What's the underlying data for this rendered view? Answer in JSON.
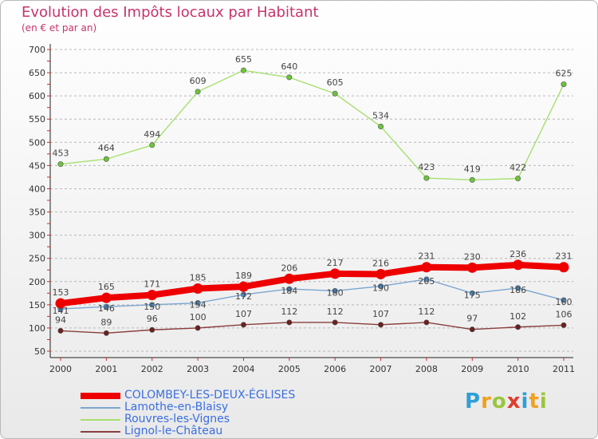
{
  "title": "Evolution des Impôts locaux par Habitant",
  "subtitle": "(en € et par an)",
  "logo": {
    "text": "Proxiti",
    "colors": [
      "#2e9fd8",
      "#f0a020",
      "#9bc53d",
      "#e23b2e",
      "#2e9fd8",
      "#f0a020",
      "#9bc53d"
    ]
  },
  "colors": {
    "title": "#c8336b",
    "grid": "#b8b8b8",
    "axis": "#222222"
  },
  "chart_data": {
    "type": "line",
    "title": "Evolution des Impôts locaux par Habitant",
    "subtitle": "(en € et par an)",
    "x": [
      "2000",
      "2001",
      "2002",
      "2003",
      "2004",
      "2005",
      "2006",
      "2007",
      "2008",
      "2009",
      "2010",
      "2011"
    ],
    "ylim": [
      50,
      700
    ],
    "yticks": [
      50,
      100,
      150,
      200,
      250,
      300,
      350,
      400,
      450,
      500,
      550,
      600,
      650,
      700
    ],
    "grid": "dashed horizontal",
    "legend_position": "bottom-left",
    "series": [
      {
        "name": "COLOMBEY-LES-DEUX-ÉGLISES",
        "color": "#ee0000",
        "marker": "#ee0000",
        "thick": true,
        "values": [
          153,
          165,
          171,
          185,
          189,
          206,
          217,
          216,
          231,
          230,
          236,
          231
        ]
      },
      {
        "name": "Lamothe-en-Blaisy",
        "color": "#7aa6d0",
        "marker": "#4a8fcf",
        "thick": false,
        "values": [
          141,
          146,
          150,
          154,
          172,
          184,
          180,
          190,
          205,
          175,
          186,
          160
        ]
      },
      {
        "name": "Rouvres-les-Vignes",
        "color": "#a6e06e",
        "marker": "#6cc43a",
        "thick": false,
        "values": [
          453,
          464,
          494,
          609,
          655,
          640,
          605,
          534,
          423,
          419,
          422,
          625
        ]
      },
      {
        "name": "Lignol-le-Château",
        "color": "#8a3d3d",
        "marker": "#6b1f1f",
        "thick": false,
        "values": [
          94,
          89,
          96,
          100,
          107,
          112,
          112,
          107,
          112,
          97,
          102,
          106
        ]
      }
    ]
  }
}
